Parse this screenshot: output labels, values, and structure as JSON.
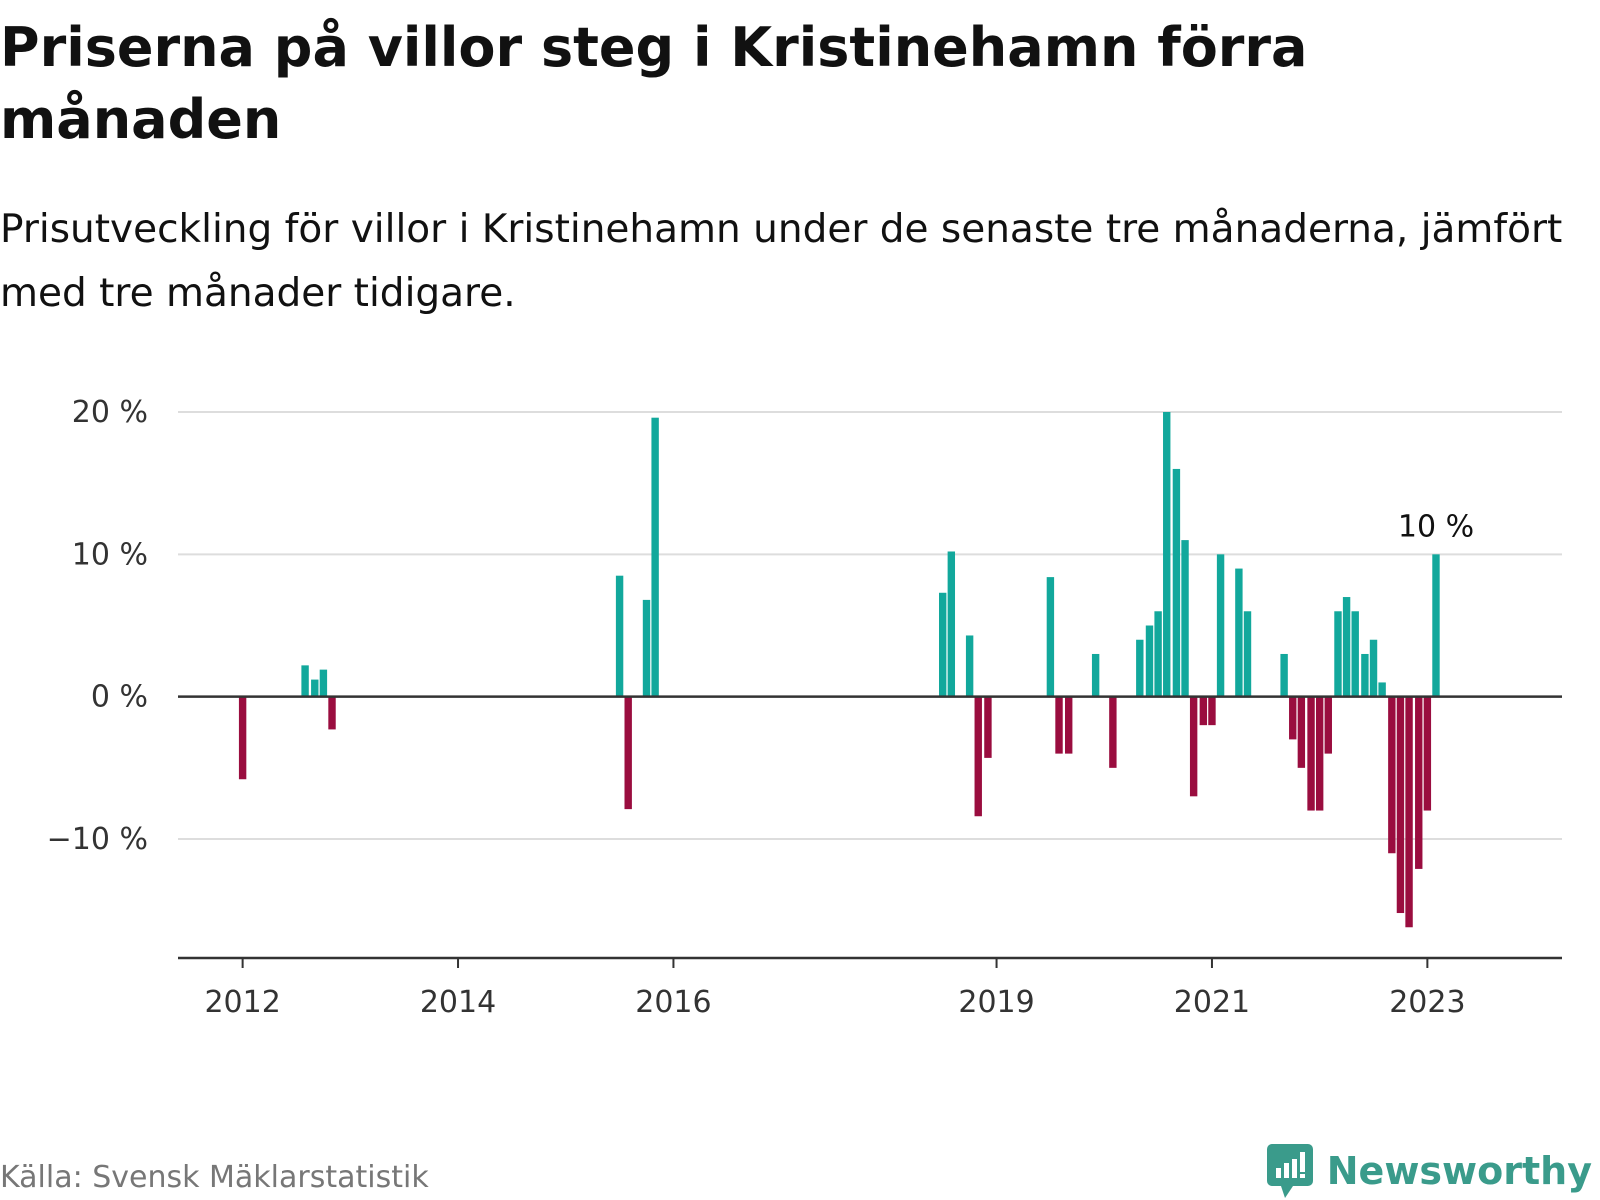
{
  "header": {
    "title": "Priserna på villor steg i Kristinehamn förra månaden",
    "subtitle": "Prisutveckling för villor i Kristinehamn under de senaste tre månaderna, jämfört med tre månader tidigare."
  },
  "footer": {
    "source": "Källa: Svensk Mäklarstatistik",
    "brand": "Newsworthy"
  },
  "colors": {
    "positive": "#12a89c",
    "negative": "#9a0d3f",
    "brand": "#3a9b8b"
  },
  "chart_data": {
    "type": "bar",
    "title": "Priserna på villor steg i Kristinehamn förra månaden",
    "subtitle": "Prisutveckling för villor i Kristinehamn under de senaste tre månaderna, jämfört med tre månader tidigare.",
    "xlabel": "",
    "ylabel": "",
    "ylim": [
      -18.5,
      20
    ],
    "y_ticks": [
      20,
      10,
      0,
      -10
    ],
    "y_tick_labels": [
      "20 %",
      "10 %",
      "0 %",
      "−10 %"
    ],
    "x_ticks": [
      2012,
      2014,
      2016,
      2019,
      2021,
      2023
    ],
    "x_tick_labels": [
      "2012",
      "2014",
      "2016",
      "2019",
      "2021",
      "2023"
    ],
    "xlim": [
      2011.4,
      2024.25
    ],
    "grid": true,
    "unit": "%",
    "annotation": {
      "x": 2023.08,
      "value": 10,
      "label": "10 %"
    },
    "points": [
      {
        "x": 2012.0,
        "value": -5.8
      },
      {
        "x": 2012.58,
        "value": 2.2
      },
      {
        "x": 2012.67,
        "value": 1.2
      },
      {
        "x": 2012.75,
        "value": 1.9
      },
      {
        "x": 2012.83,
        "value": -2.3
      },
      {
        "x": 2015.5,
        "value": 8.5
      },
      {
        "x": 2015.58,
        "value": -7.9
      },
      {
        "x": 2015.75,
        "value": 6.8
      },
      {
        "x": 2015.83,
        "value": 19.6
      },
      {
        "x": 2018.5,
        "value": 7.3
      },
      {
        "x": 2018.58,
        "value": 10.2
      },
      {
        "x": 2018.75,
        "value": 4.3
      },
      {
        "x": 2018.83,
        "value": -8.4
      },
      {
        "x": 2018.92,
        "value": -4.3
      },
      {
        "x": 2019.5,
        "value": 8.4
      },
      {
        "x": 2019.58,
        "value": -4.0
      },
      {
        "x": 2019.67,
        "value": -4.0
      },
      {
        "x": 2019.92,
        "value": 3.0
      },
      {
        "x": 2020.08,
        "value": -5.0
      },
      {
        "x": 2020.33,
        "value": 4.0
      },
      {
        "x": 2020.42,
        "value": 5.0
      },
      {
        "x": 2020.5,
        "value": 6.0
      },
      {
        "x": 2020.58,
        "value": 20.0
      },
      {
        "x": 2020.67,
        "value": 16.0
      },
      {
        "x": 2020.75,
        "value": 11.0
      },
      {
        "x": 2020.83,
        "value": -7.0
      },
      {
        "x": 2020.92,
        "value": -2.0
      },
      {
        "x": 2021.0,
        "value": -2.0
      },
      {
        "x": 2021.08,
        "value": 10.0
      },
      {
        "x": 2021.25,
        "value": 9.0
      },
      {
        "x": 2021.33,
        "value": 6.0
      },
      {
        "x": 2021.67,
        "value": 3.0
      },
      {
        "x": 2021.75,
        "value": -3.0
      },
      {
        "x": 2021.83,
        "value": -5.0
      },
      {
        "x": 2021.92,
        "value": -8.0
      },
      {
        "x": 2022.0,
        "value": -8.0
      },
      {
        "x": 2022.08,
        "value": -4.0
      },
      {
        "x": 2022.17,
        "value": 6.0
      },
      {
        "x": 2022.25,
        "value": 7.0
      },
      {
        "x": 2022.33,
        "value": 6.0
      },
      {
        "x": 2022.42,
        "value": 3.0
      },
      {
        "x": 2022.5,
        "value": 4.0
      },
      {
        "x": 2022.58,
        "value": 1.0
      },
      {
        "x": 2022.67,
        "value": -11.0
      },
      {
        "x": 2022.75,
        "value": -15.2
      },
      {
        "x": 2022.83,
        "value": -16.2
      },
      {
        "x": 2022.92,
        "value": -12.1
      },
      {
        "x": 2023.0,
        "value": -8.0
      },
      {
        "x": 2023.08,
        "value": 10.0
      }
    ]
  }
}
